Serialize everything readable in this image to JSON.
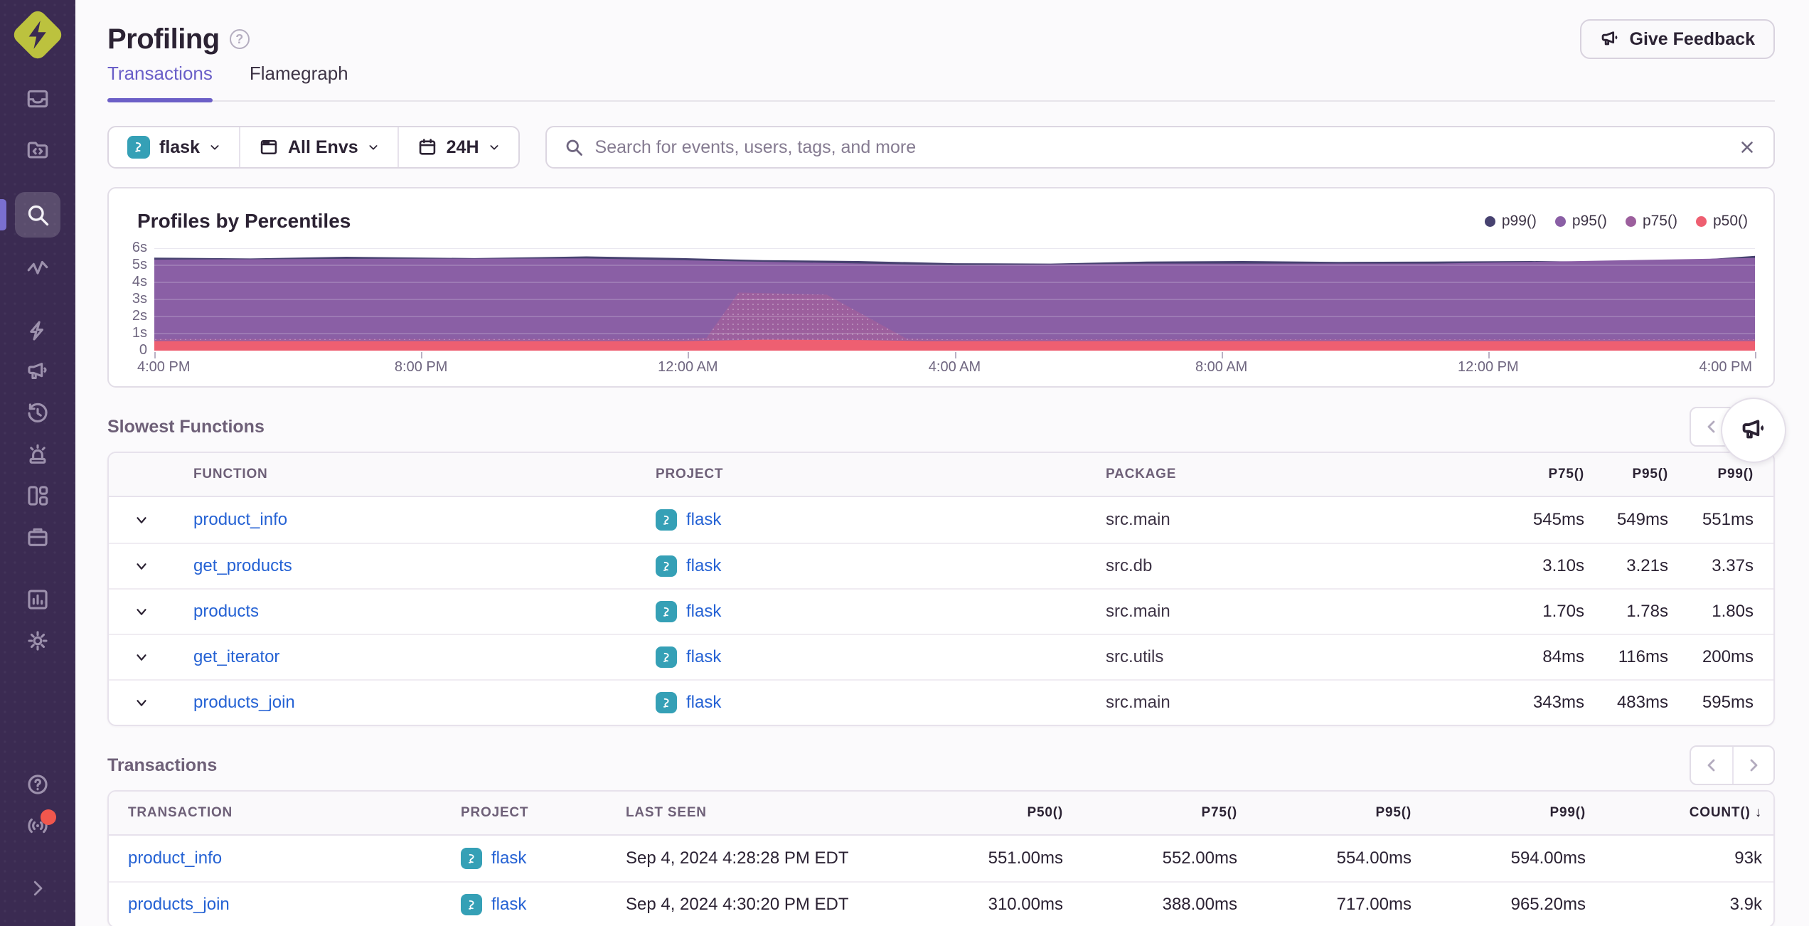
{
  "colors": {
    "accent": "#6c5fc7",
    "sidebar_bg": "#3b2b52",
    "link": "#2562d4",
    "flask_badge": "#35a0b6",
    "logo": "#bcc23e",
    "notification": "#f1574d"
  },
  "sidebar": {
    "items": [
      "issues",
      "projects",
      "explore",
      "traces",
      "insights",
      "user-feedback",
      "replays",
      "alerts",
      "dashboards",
      "releases",
      "stats",
      "settings"
    ],
    "active_item": "explore",
    "bottom_items": [
      "help",
      "whats-new",
      "collapse"
    ]
  },
  "header": {
    "title": "Profiling",
    "feedback_button": "Give Feedback"
  },
  "tabs": [
    {
      "label": "Transactions"
    },
    {
      "label": "Flamegraph"
    }
  ],
  "filters": {
    "project": {
      "label": "flask"
    },
    "environment": {
      "label": "All Envs"
    },
    "period": {
      "label": "24H"
    },
    "search_placeholder": "Search for events, users, tags, and more"
  },
  "chart_data": {
    "type": "area",
    "title": "Profiles by Percentiles",
    "ylim": [
      0,
      6
    ],
    "y_ticks": [
      "0",
      "1s",
      "2s",
      "3s",
      "4s",
      "5s",
      "6s"
    ],
    "x_ticks": [
      "4:00 PM",
      "8:00 PM",
      "12:00 AM",
      "4:00 AM",
      "8:00 AM",
      "12:00 PM",
      "4:00 PM"
    ],
    "grid": true,
    "legend_position": "top-right",
    "series": [
      {
        "name": "p99()",
        "color": "#474270",
        "points": [
          [
            0,
            5.45
          ],
          [
            0.06,
            5.4
          ],
          [
            0.12,
            5.5
          ],
          [
            0.2,
            5.42
          ],
          [
            0.27,
            5.52
          ],
          [
            0.33,
            5.42
          ],
          [
            0.38,
            5.3
          ],
          [
            0.44,
            5.25
          ],
          [
            0.5,
            5.12
          ],
          [
            0.56,
            5.1
          ],
          [
            0.62,
            5.22
          ],
          [
            0.68,
            5.25
          ],
          [
            0.74,
            5.2
          ],
          [
            0.8,
            5.22
          ],
          [
            0.86,
            5.25
          ],
          [
            0.92,
            5.2
          ],
          [
            0.96,
            5.3
          ],
          [
            1,
            5.55
          ]
        ]
      },
      {
        "name": "p95()",
        "color": "#8a5fa5",
        "points": [
          [
            0,
            5.33
          ],
          [
            0.12,
            5.38
          ],
          [
            0.27,
            5.4
          ],
          [
            0.5,
            5.0
          ],
          [
            0.62,
            5.1
          ],
          [
            0.8,
            5.1
          ],
          [
            1,
            5.43
          ]
        ]
      },
      {
        "name": "p75()",
        "color": "#9c5f9d",
        "points": [
          [
            0,
            0.68
          ],
          [
            0.33,
            0.68
          ],
          [
            0.345,
            0.75
          ],
          [
            0.365,
            3.4
          ],
          [
            0.42,
            3.28
          ],
          [
            0.47,
            0.7
          ],
          [
            0.5,
            0.66
          ],
          [
            1,
            0.66
          ]
        ]
      },
      {
        "name": "p50()",
        "color": "#ee5f71",
        "points": [
          [
            0,
            0.56
          ],
          [
            0.33,
            0.56
          ],
          [
            0.38,
            0.64
          ],
          [
            0.44,
            0.62
          ],
          [
            0.48,
            0.56
          ],
          [
            1,
            0.56
          ]
        ]
      }
    ]
  },
  "slowest_functions": {
    "title": "Slowest Functions",
    "columns": [
      "FUNCTION",
      "PROJECT",
      "PACKAGE",
      "P75()",
      "P95()",
      "P99()"
    ],
    "rows": [
      {
        "function": "product_info",
        "project": "flask",
        "package": "src.main",
        "p75": "545ms",
        "p95": "549ms",
        "p99": "551ms"
      },
      {
        "function": "get_products",
        "project": "flask",
        "package": "src.db",
        "p75": "3.10s",
        "p95": "3.21s",
        "p99": "3.37s"
      },
      {
        "function": "products",
        "project": "flask",
        "package": "src.main",
        "p75": "1.70s",
        "p95": "1.78s",
        "p99": "1.80s"
      },
      {
        "function": "get_iterator",
        "project": "flask",
        "package": "src.utils",
        "p75": "84ms",
        "p95": "116ms",
        "p99": "200ms"
      },
      {
        "function": "products_join",
        "project": "flask",
        "package": "src.main",
        "p75": "343ms",
        "p95": "483ms",
        "p99": "595ms"
      }
    ]
  },
  "transactions": {
    "title": "Transactions",
    "columns": [
      "TRANSACTION",
      "PROJECT",
      "LAST SEEN",
      "P50()",
      "P75()",
      "P95()",
      "P99()",
      "COUNT()"
    ],
    "sort_column": "COUNT()",
    "sort_indicator": "↓",
    "rows": [
      {
        "transaction": "product_info",
        "project": "flask",
        "last_seen": "Sep 4, 2024 4:28:28 PM EDT",
        "p50": "551.00ms",
        "p75": "552.00ms",
        "p95": "554.00ms",
        "p99": "594.00ms",
        "count": "93k"
      },
      {
        "transaction": "products_join",
        "project": "flask",
        "last_seen": "Sep 4, 2024 4:30:20 PM EDT",
        "p50": "310.00ms",
        "p75": "388.00ms",
        "p95": "717.00ms",
        "p99": "965.20ms",
        "count": "3.9k"
      }
    ]
  }
}
